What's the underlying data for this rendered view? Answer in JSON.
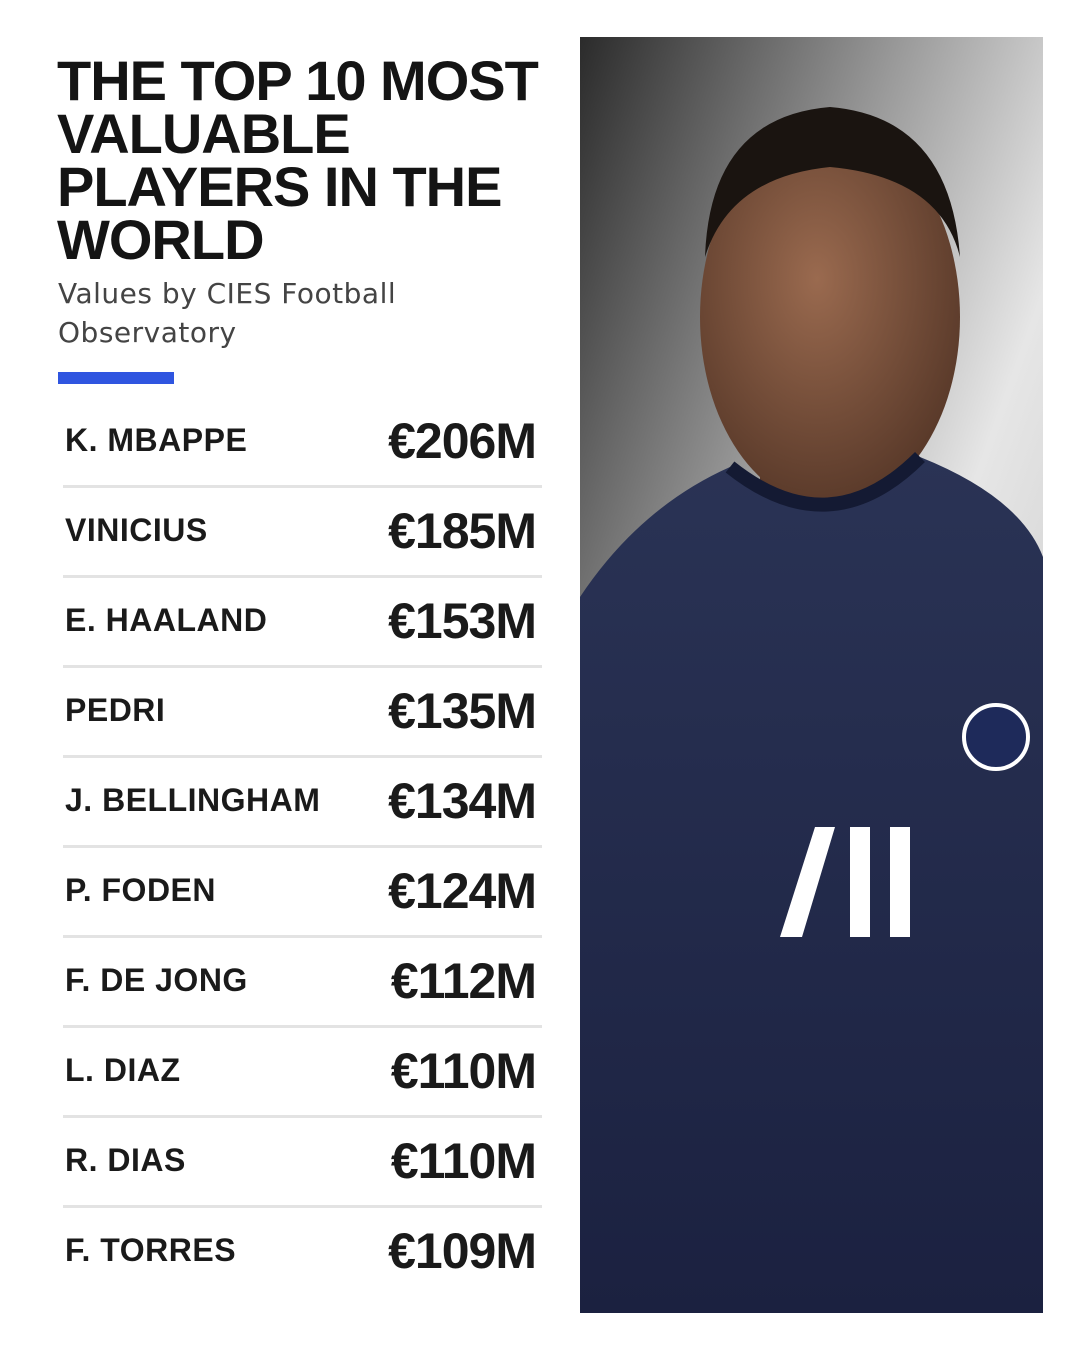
{
  "header": {
    "title": "THE TOP 10 MOST VALUABLE PLAYERS IN THE WORLD",
    "subtitle": "Values by CIES Football Observatory"
  },
  "table": {
    "rows": [
      [
        "K. MBAPPE",
        "€206M"
      ],
      [
        "VINICIUS",
        "€185M"
      ],
      [
        "E. HAALAND",
        "€153M"
      ],
      [
        "PEDRI",
        "€135M"
      ],
      [
        "J. BELLINGHAM",
        "€134M"
      ],
      [
        "P. FODEN",
        "€124M"
      ],
      [
        "F. DE JONG",
        "€112M"
      ],
      [
        "L. DIAZ",
        "€110M"
      ],
      [
        "R. DIAS",
        "€110M"
      ],
      [
        "F. TORRES",
        "€109M"
      ]
    ]
  }
}
